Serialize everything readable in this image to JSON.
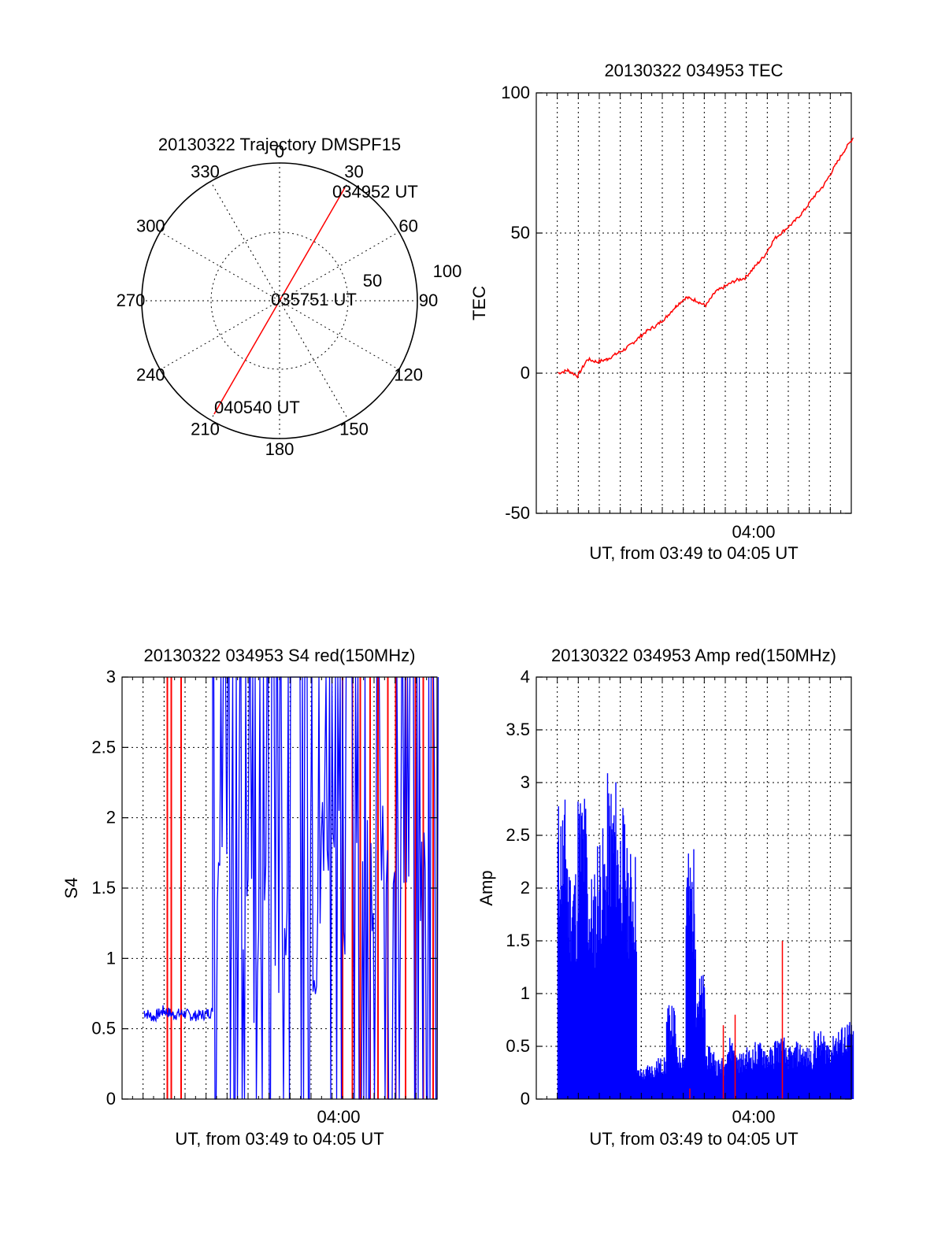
{
  "chart_data": [
    {
      "type": "polar",
      "title": "20130322 Trajectory DMSPF15",
      "angle_labels": [
        "0",
        "30",
        "60",
        "90",
        "120",
        "150",
        "180",
        "210",
        "240",
        "270",
        "300",
        "330"
      ],
      "radial_labels": [
        "50",
        "100"
      ],
      "rlim": [
        0,
        100
      ],
      "trajectory_color": "#ff0000",
      "points": [
        {
          "label": "034952 UT",
          "azimuth": 30,
          "r": 95
        },
        {
          "label": "035751 UT",
          "azimuth": 30,
          "r": 0
        },
        {
          "label": "040540 UT",
          "azimuth": 210,
          "r": 95
        }
      ]
    },
    {
      "type": "line",
      "title": "20130322 034953 TEC",
      "xlabel": "UT, from 03:49 to 04:05 UT",
      "ylabel": "TEC",
      "xtick_label": "04:00",
      "ylim": [
        -50,
        100
      ],
      "yticks": [
        "-50",
        "0",
        "50",
        "100"
      ],
      "series_color": "#ff0000",
      "x_minutes": [
        0,
        0.5,
        1,
        1.5,
        2,
        2.5,
        3,
        3.5,
        4,
        4.5,
        5,
        5.5,
        6,
        6.5,
        7,
        7.5,
        8,
        8.5,
        9,
        9.5,
        10,
        10.5,
        11,
        11.5,
        12,
        12.5,
        13,
        13.5,
        14,
        14.5,
        15
      ],
      "values": [
        0,
        1,
        -1,
        5,
        4,
        5,
        7,
        9,
        12,
        15,
        17,
        20,
        24,
        27,
        26,
        24,
        29,
        31,
        33,
        34,
        38,
        42,
        48,
        51,
        54,
        58,
        63,
        67,
        73,
        79,
        84
      ]
    },
    {
      "type": "line",
      "title": "20130322 034953 S4 red(150MHz)",
      "xlabel": "UT, from 03:49 to 04:05 UT",
      "ylabel": "S4",
      "xtick_label": "04:00",
      "ylim": [
        0,
        3
      ],
      "yticks": [
        "0",
        "0.5",
        "1",
        "1.5",
        "2",
        "2.5",
        "3"
      ],
      "series": [
        {
          "name": "blue",
          "color": "#0000ff",
          "x_minutes": [
            0,
            0.5,
            1,
            1.5,
            2,
            2.5,
            3,
            3.5,
            5,
            5.5,
            6,
            6.5,
            7,
            7.5,
            8,
            8.5,
            9,
            9.5,
            10,
            10.5,
            11,
            11.5,
            12,
            12.5,
            13,
            13.5,
            14,
            14.5,
            15
          ],
          "values": [
            0.62,
            0.58,
            0.63,
            0.6,
            0.61,
            0.59,
            0.6,
            0.62,
            1.2,
            0.9,
            1.4,
            0.6,
            1.0,
            2.2,
            1.6,
            1.1,
            2.0,
            1.7,
            1.2,
            2.1,
            1.8,
            1.5,
            1.9,
            1.4,
            1.6,
            1.3,
            1.5,
            1.8,
            1.4
          ]
        },
        {
          "name": "red",
          "color": "#ff0000",
          "spike_minutes": [
            1.2,
            1.4,
            1.9,
            10.1,
            10.6,
            11.0,
            11.5,
            11.9,
            12.4,
            12.8,
            13.3,
            13.8,
            14.2,
            14.7
          ]
        }
      ]
    },
    {
      "type": "line",
      "title": "20130322 034953 Amp red(150MHz)",
      "xlabel": "UT, from 03:49 to 04:05 UT",
      "ylabel": "Amp",
      "xtick_label": "04:00",
      "ylim": [
        0,
        4
      ],
      "yticks": [
        "0",
        "0.5",
        "1",
        "1.5",
        "2",
        "2.5",
        "3",
        "3.5",
        "4"
      ],
      "series": [
        {
          "name": "blue",
          "color": "#0000ff",
          "x_minutes": [
            0,
            0.5,
            1,
            1.5,
            2,
            2.5,
            3,
            3.5,
            4,
            4.5,
            5,
            5.5,
            6,
            6.5,
            7,
            7.5,
            8,
            8.5,
            9,
            9.5,
            10,
            10.5,
            11,
            11.5,
            12,
            12.5,
            13,
            13.5,
            14,
            14.5,
            15
          ],
          "values": [
            2.9,
            2.3,
            3.0,
            2.2,
            2.6,
            3.1,
            2.8,
            2.4,
            0.3,
            0.35,
            0.4,
            0.9,
            0.5,
            2.4,
            1.2,
            0.5,
            0.4,
            0.6,
            0.45,
            0.5,
            0.55,
            0.5,
            0.6,
            0.5,
            0.55,
            0.5,
            0.65,
            0.6,
            0.7,
            0.75,
            0.8
          ]
        },
        {
          "name": "red",
          "color": "#ff0000",
          "spike_minutes": [
            6.7,
            8.4,
            9.0,
            11.4
          ],
          "spike_values": [
            0.1,
            0.7,
            0.8,
            1.5
          ]
        }
      ]
    }
  ]
}
